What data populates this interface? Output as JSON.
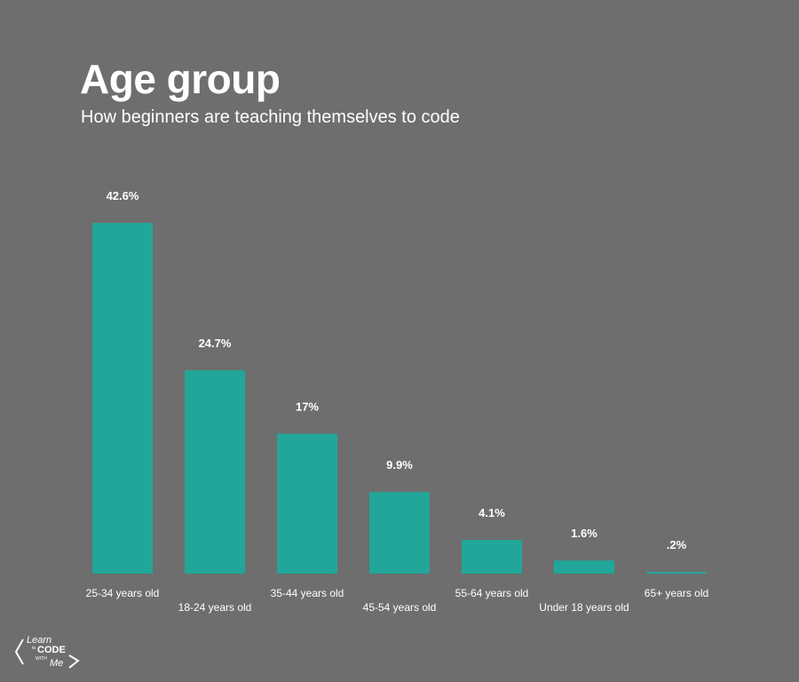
{
  "title": "Age group",
  "subtitle": "How beginners are teaching themselves to code",
  "colors": {
    "background": "#6e6e6e",
    "bar": "#22a699",
    "text": "#ffffff"
  },
  "logo": {
    "line1": "Learn",
    "line2": "to",
    "line3": "CODE",
    "line4": "WITH",
    "line5": "Me"
  },
  "chart_data": {
    "type": "bar",
    "title": "Age group",
    "subtitle": "How beginners are teaching themselves to code",
    "categories": [
      "25-34 years old",
      "18-24 years old",
      "35-44 years old",
      "45-54 years old",
      "55-64 years old",
      "Under 18 years old",
      "65+ years old"
    ],
    "values": [
      42.6,
      24.7,
      17,
      9.9,
      4.1,
      1.6,
      0.2
    ],
    "value_labels": [
      "42.6%",
      "24.7%",
      "17%",
      "9.9%",
      "4.1%",
      "1.6%",
      ".2%"
    ],
    "unit": "%",
    "ylim": [
      0,
      42.6
    ],
    "grid": false,
    "legend": "none"
  }
}
